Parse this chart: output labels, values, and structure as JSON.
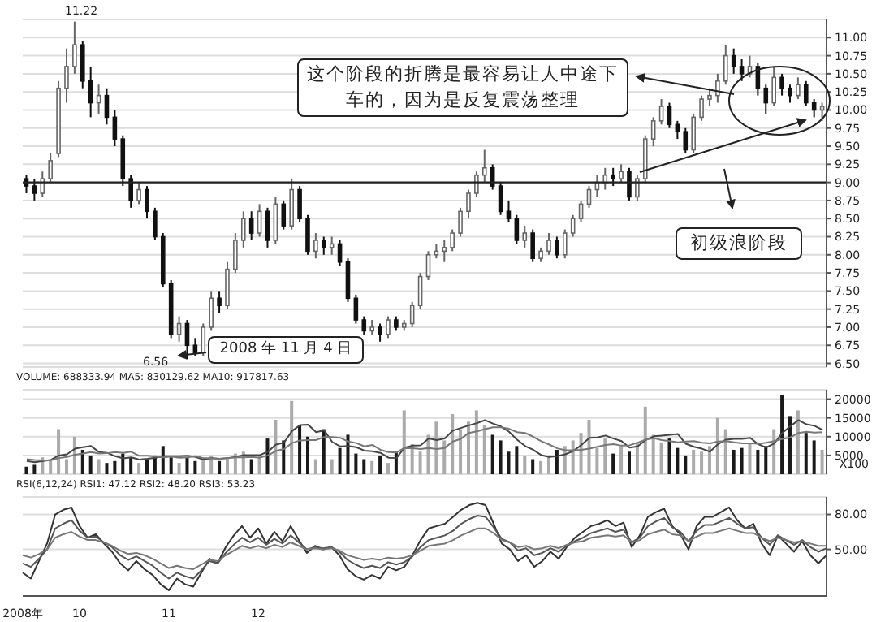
{
  "chart_data": [
    {
      "type": "candlestick",
      "categories": [
        null,
        null,
        null,
        null,
        null,
        null,
        null,
        null,
        null,
        null,
        null,
        null,
        null,
        null,
        null,
        null,
        null,
        null,
        null,
        null,
        null,
        null,
        null,
        null,
        null,
        null,
        null,
        null,
        null,
        null,
        null,
        null,
        null,
        null,
        null,
        null,
        null,
        null,
        null,
        null,
        null,
        null,
        null,
        null,
        null,
        null,
        null,
        null,
        null,
        null,
        null,
        null,
        null,
        null,
        null,
        null,
        null,
        null,
        null,
        null,
        null,
        null,
        null,
        null,
        null,
        null,
        null,
        null,
        null,
        null,
        null,
        null,
        null,
        null,
        null,
        null,
        null,
        null,
        null,
        null,
        null,
        null,
        null,
        null,
        null,
        null,
        null,
        null,
        null,
        null,
        null,
        null,
        null,
        null,
        null,
        null,
        null,
        null,
        null,
        null
      ],
      "ohlc": [
        [
          9.05,
          9.1,
          8.85,
          8.95
        ],
        [
          8.95,
          9.05,
          8.75,
          8.85
        ],
        [
          8.85,
          9.15,
          8.8,
          9.05
        ],
        [
          9.05,
          9.4,
          9.0,
          9.3
        ],
        [
          9.4,
          10.4,
          9.35,
          10.3
        ],
        [
          10.3,
          10.85,
          10.1,
          10.6
        ],
        [
          10.6,
          11.22,
          10.5,
          10.9
        ],
        [
          10.9,
          10.95,
          10.3,
          10.4
        ],
        [
          10.4,
          10.6,
          9.9,
          10.1
        ],
        [
          10.1,
          10.35,
          9.95,
          10.2
        ],
        [
          10.2,
          10.3,
          9.8,
          9.9
        ],
        [
          9.9,
          10.0,
          9.5,
          9.6
        ],
        [
          9.6,
          9.65,
          8.95,
          9.05
        ],
        [
          9.05,
          9.1,
          8.65,
          8.75
        ],
        [
          8.75,
          9.0,
          8.7,
          8.9
        ],
        [
          8.9,
          8.95,
          8.5,
          8.6
        ],
        [
          8.6,
          8.65,
          8.2,
          8.25
        ],
        [
          8.25,
          8.3,
          7.55,
          7.6
        ],
        [
          7.6,
          7.65,
          6.85,
          6.9
        ],
        [
          6.9,
          7.15,
          6.8,
          7.05
        ],
        [
          7.05,
          7.1,
          6.56,
          6.75
        ],
        [
          6.75,
          6.85,
          6.6,
          6.65
        ],
        [
          6.65,
          7.05,
          6.6,
          7.0
        ],
        [
          7.0,
          7.5,
          6.95,
          7.4
        ],
        [
          7.4,
          7.5,
          7.2,
          7.3
        ],
        [
          7.3,
          7.9,
          7.25,
          7.8
        ],
        [
          7.8,
          8.3,
          7.75,
          8.2
        ],
        [
          8.2,
          8.6,
          8.1,
          8.5
        ],
        [
          8.5,
          8.6,
          8.2,
          8.3
        ],
        [
          8.3,
          8.7,
          8.25,
          8.6
        ],
        [
          8.6,
          8.65,
          8.1,
          8.2
        ],
        [
          8.2,
          8.8,
          8.15,
          8.7
        ],
        [
          8.7,
          8.75,
          8.35,
          8.4
        ],
        [
          8.4,
          9.05,
          8.35,
          8.9
        ],
        [
          8.9,
          8.95,
          8.45,
          8.5
        ],
        [
          8.5,
          8.55,
          8.0,
          8.05
        ],
        [
          8.05,
          8.3,
          7.95,
          8.2
        ],
        [
          8.2,
          8.25,
          8.0,
          8.1
        ],
        [
          8.1,
          8.25,
          8.0,
          8.15
        ],
        [
          8.15,
          8.2,
          7.85,
          7.9
        ],
        [
          7.9,
          7.95,
          7.35,
          7.4
        ],
        [
          7.4,
          7.45,
          7.05,
          7.1
        ],
        [
          7.1,
          7.15,
          6.9,
          6.95
        ],
        [
          6.95,
          7.1,
          6.9,
          7.0
        ],
        [
          7.0,
          7.05,
          6.8,
          6.9
        ],
        [
          6.9,
          7.15,
          6.85,
          7.1
        ],
        [
          7.1,
          7.15,
          6.95,
          7.0
        ],
        [
          7.0,
          7.1,
          6.95,
          7.05
        ],
        [
          7.05,
          7.35,
          7.0,
          7.3
        ],
        [
          7.3,
          7.75,
          7.25,
          7.7
        ],
        [
          7.7,
          8.05,
          7.65,
          8.0
        ],
        [
          8.0,
          8.15,
          7.95,
          8.05
        ],
        [
          8.05,
          8.2,
          7.9,
          8.1
        ],
        [
          8.1,
          8.35,
          8.05,
          8.3
        ],
        [
          8.3,
          8.65,
          8.25,
          8.6
        ],
        [
          8.6,
          8.9,
          8.5,
          8.85
        ],
        [
          8.85,
          9.15,
          8.8,
          9.1
        ],
        [
          9.1,
          9.45,
          9.0,
          9.2
        ],
        [
          9.2,
          9.25,
          8.9,
          8.95
        ],
        [
          8.95,
          9.0,
          8.55,
          8.6
        ],
        [
          8.6,
          8.75,
          8.45,
          8.5
        ],
        [
          8.5,
          8.55,
          8.15,
          8.2
        ],
        [
          8.2,
          8.4,
          8.1,
          8.3
        ],
        [
          8.3,
          8.35,
          7.9,
          7.95
        ],
        [
          7.95,
          8.1,
          7.9,
          8.05
        ],
        [
          8.05,
          8.3,
          8.0,
          8.2
        ],
        [
          8.2,
          8.25,
          7.95,
          8.0
        ],
        [
          8.0,
          8.35,
          7.95,
          8.3
        ],
        [
          8.3,
          8.55,
          8.25,
          8.5
        ],
        [
          8.5,
          8.75,
          8.45,
          8.7
        ],
        [
          8.7,
          8.95,
          8.65,
          8.9
        ],
        [
          8.9,
          9.1,
          8.8,
          9.0
        ],
        [
          9.0,
          9.2,
          8.9,
          9.1
        ],
        [
          9.1,
          9.2,
          8.95,
          9.05
        ],
        [
          9.05,
          9.25,
          9.0,
          9.15
        ],
        [
          9.15,
          9.2,
          8.75,
          8.8
        ],
        [
          8.8,
          9.1,
          8.75,
          9.05
        ],
        [
          9.05,
          9.65,
          9.0,
          9.6
        ],
        [
          9.6,
          9.9,
          9.5,
          9.85
        ],
        [
          9.85,
          10.15,
          9.8,
          10.05
        ],
        [
          10.05,
          10.1,
          9.75,
          9.8
        ],
        [
          9.8,
          9.85,
          9.6,
          9.7
        ],
        [
          9.7,
          9.75,
          9.4,
          9.45
        ],
        [
          9.45,
          9.95,
          9.4,
          9.9
        ],
        [
          9.9,
          10.2,
          9.85,
          10.15
        ],
        [
          10.15,
          10.3,
          10.05,
          10.2
        ],
        [
          10.2,
          10.5,
          10.1,
          10.4
        ],
        [
          10.4,
          10.9,
          10.35,
          10.75
        ],
        [
          10.75,
          10.85,
          10.5,
          10.6
        ],
        [
          10.6,
          10.7,
          10.4,
          10.5
        ],
        [
          10.5,
          10.75,
          10.45,
          10.6
        ],
        [
          10.6,
          10.65,
          10.2,
          10.3
        ],
        [
          10.3,
          10.35,
          9.95,
          10.1
        ],
        [
          10.1,
          10.6,
          10.05,
          10.45
        ],
        [
          10.45,
          10.5,
          10.2,
          10.3
        ],
        [
          10.3,
          10.35,
          10.1,
          10.2
        ],
        [
          10.2,
          10.45,
          10.15,
          10.35
        ],
        [
          10.35,
          10.4,
          10.05,
          10.1
        ],
        [
          10.1,
          10.15,
          9.9,
          10.0
        ],
        [
          10.0,
          10.1,
          9.85,
          10.05
        ]
      ],
      "ylim": [
        6.45,
        11.25
      ],
      "yticks": [
        {
          "value": 6.5,
          "label": "6.50"
        },
        {
          "value": 6.75,
          "label": "6.75"
        },
        {
          "value": 7,
          "label": "7.00"
        },
        {
          "value": 7.25,
          "label": "7.25"
        },
        {
          "value": 7.5,
          "label": "7.50"
        },
        {
          "value": 7.75,
          "label": "7.75"
        },
        {
          "value": 8,
          "label": "8.00"
        },
        {
          "value": 8.25,
          "label": "8.25"
        },
        {
          "value": 8.5,
          "label": "8.50"
        },
        {
          "value": 8.75,
          "label": "8.75"
        },
        {
          "value": 9,
          "label": "9.00"
        },
        {
          "value": 9.25,
          "label": "9.25"
        },
        {
          "value": 9.5,
          "label": "9.50"
        },
        {
          "value": 9.75,
          "label": "9.75"
        },
        {
          "value": 10,
          "label": "10.00"
        },
        {
          "value": 10.25,
          "label": "10.25"
        },
        {
          "value": 10.5,
          "label": "10.50"
        },
        {
          "value": 10.75,
          "label": "10.75"
        },
        {
          "value": 11,
          "label": "11.00"
        }
      ],
      "grid": "y",
      "tick_labels": "y",
      "ref_lines": [
        {
          "axis": "y",
          "value": 9.0,
          "color": "#222222"
        }
      ],
      "annotations": [
        "11.22",
        "6.56",
        "2008 年 11 月 4 日",
        "这个阶段的折腾是最容易让人中途下车的，因为是反复震荡整理",
        "初级浪阶段"
      ]
    },
    {
      "type": "bar",
      "title": "VOLUME: 688333.94 MA5: 830129.62 MA10: 917817.63",
      "ylabel": "X100",
      "categories": [
        null,
        null,
        null,
        null,
        null,
        null,
        null,
        null,
        null,
        null,
        null,
        null,
        null,
        null,
        null,
        null,
        null,
        null,
        null,
        null,
        null,
        null,
        null,
        null,
        null,
        null,
        null,
        null,
        null,
        null,
        null,
        null,
        null,
        null,
        null,
        null,
        null,
        null,
        null,
        null,
        null,
        null,
        null,
        null,
        null,
        null,
        null,
        null,
        null,
        null,
        null,
        null,
        null,
        null,
        null,
        null,
        null,
        null,
        null,
        null,
        null,
        null,
        null,
        null,
        null,
        null,
        null,
        null,
        null,
        null,
        null,
        null,
        null,
        null,
        null,
        null,
        null,
        null,
        null,
        null,
        null,
        null,
        null,
        null,
        null,
        null,
        null,
        null,
        null,
        null,
        null,
        null,
        null,
        null,
        null,
        null,
        null,
        null,
        null,
        null
      ],
      "ylim": [
        0,
        22500
      ],
      "yticks": [
        5000,
        10000,
        15000,
        20000
      ],
      "grid": "y",
      "tick_labels": "y",
      "series": [
        {
          "type": "bar",
          "values": [
            2000,
            2500,
            4500,
            3500,
            12000,
            4000,
            10000,
            6500,
            5000,
            4000,
            3000,
            3500,
            5500,
            4500,
            3000,
            4000,
            5000,
            7500,
            4500,
            3000,
            4500,
            3500,
            4000,
            5000,
            3500,
            4500,
            5500,
            6000,
            4000,
            5000,
            9500,
            14500,
            9000,
            19500,
            13000,
            10000,
            4000,
            12000,
            4000,
            7000,
            10500,
            5500,
            4000,
            3500,
            5000,
            3000,
            6000,
            17000,
            8000,
            6000,
            10500,
            14000,
            9000,
            16000,
            12000,
            14000,
            17000,
            13000,
            10500,
            9000,
            6000,
            7500,
            5000,
            4000,
            3500,
            5000,
            6500,
            7500,
            9000,
            11000,
            14500,
            7000,
            9500,
            5500,
            7500,
            6000,
            8500,
            18000,
            10500,
            8500,
            9500,
            7000,
            5000,
            6500,
            6000,
            7500,
            15000,
            12000,
            6500,
            7000,
            8000,
            6500,
            7500,
            12000,
            21000,
            15500,
            17000,
            11000,
            9000,
            6500
          ],
          "colors": [
            "#1a1a1a",
            "#1a1a1a",
            "#aaaaaa",
            "#aaaaaa",
            "#aaaaaa",
            "#aaaaaa",
            "#aaaaaa",
            "#1a1a1a",
            "#1a1a1a",
            "#aaaaaa",
            "#1a1a1a",
            "#1a1a1a",
            "#1a1a1a",
            "#1a1a1a",
            "#aaaaaa",
            "#1a1a1a",
            "#1a1a1a",
            "#1a1a1a",
            "#1a1a1a",
            "#aaaaaa",
            "#1a1a1a",
            "#1a1a1a",
            "#aaaaaa",
            "#aaaaaa",
            "#1a1a1a",
            "#aaaaaa",
            "#aaaaaa",
            "#aaaaaa",
            "#1a1a1a",
            "#aaaaaa",
            "#1a1a1a",
            "#aaaaaa",
            "#1a1a1a",
            "#aaaaaa",
            "#1a1a1a",
            "#1a1a1a",
            "#aaaaaa",
            "#1a1a1a",
            "#aaaaaa",
            "#1a1a1a",
            "#1a1a1a",
            "#1a1a1a",
            "#1a1a1a",
            "#aaaaaa",
            "#1a1a1a",
            "#aaaaaa",
            "#1a1a1a",
            "#aaaaaa",
            "#aaaaaa",
            "#aaaaaa",
            "#aaaaaa",
            "#aaaaaa",
            "#aaaaaa",
            "#aaaaaa",
            "#aaaaaa",
            "#aaaaaa",
            "#aaaaaa",
            "#aaaaaa",
            "#1a1a1a",
            "#1a1a1a",
            "#1a1a1a",
            "#1a1a1a",
            "#aaaaaa",
            "#1a1a1a",
            "#aaaaaa",
            "#aaaaaa",
            "#1a1a1a",
            "#aaaaaa",
            "#aaaaaa",
            "#aaaaaa",
            "#aaaaaa",
            "#aaaaaa",
            "#aaaaaa",
            "#1a1a1a",
            "#aaaaaa",
            "#1a1a1a",
            "#aaaaaa",
            "#aaaaaa",
            "#aaaaaa",
            "#aaaaaa",
            "#1a1a1a",
            "#1a1a1a",
            "#1a1a1a",
            "#aaaaaa",
            "#aaaaaa",
            "#aaaaaa",
            "#aaaaaa",
            "#aaaaaa",
            "#1a1a1a",
            "#1a1a1a",
            "#aaaaaa",
            "#1a1a1a",
            "#1a1a1a",
            "#aaaaaa",
            "#1a1a1a",
            "#1a1a1a",
            "#aaaaaa",
            "#1a1a1a",
            "#1a1a1a",
            "#aaaaaa"
          ]
        },
        {
          "type": "line",
          "color": "#444444",
          "values": [
            3500,
            3200,
            3500,
            3800,
            5000,
            5300,
            6800,
            7200,
            7500,
            5900,
            5700,
            4800,
            4200,
            4500,
            3900,
            4100,
            4400,
            4800,
            4800,
            4800,
            4900,
            4600,
            3900,
            4300,
            4100,
            4300,
            4600,
            5100,
            5100,
            5100,
            6000,
            7900,
            8400,
            11500,
            13100,
            13200,
            11200,
            11700,
            8600,
            7400,
            7500,
            7200,
            6300,
            6100,
            5700,
            4400,
            4300,
            7100,
            7600,
            7700,
            9500,
            9100,
            9500,
            11600,
            12300,
            13000,
            13600,
            14400,
            13500,
            12700,
            11300,
            9200,
            7500,
            6500,
            5100,
            4600,
            4800,
            5300,
            6200,
            7800,
            9700,
            9800,
            10300,
            9500,
            8800,
            7100,
            7400,
            9100,
            10100,
            10300,
            10500,
            10700,
            8100,
            7300,
            6800,
            6000,
            8000,
            9200,
            9400,
            9400,
            9700,
            8000,
            7100,
            8200,
            11000,
            12800,
            14400,
            13300,
            12900,
            11800
          ]
        },
        {
          "type": "line",
          "color": "#777777",
          "values": [
            4000,
            3800,
            3700,
            3700,
            4300,
            4600,
            5200,
            5500,
            5900,
            5500,
            5600,
            5900,
            5700,
            6000,
            4900,
            4900,
            4700,
            4500,
            4700,
            4400,
            4500,
            4800,
            4300,
            4200,
            4100,
            4300,
            4500,
            4500,
            4600,
            4400,
            5000,
            6200,
            6700,
            8300,
            9000,
            9100,
            9100,
            9900,
            9900,
            9700,
            8700,
            8300,
            7400,
            7800,
            6500,
            5900,
            5800,
            7000,
            6900,
            6700,
            7000,
            6700,
            7000,
            8700,
            9400,
            11000,
            11400,
            12000,
            12500,
            12500,
            12100,
            11200,
            11000,
            10000,
            8800,
            7900,
            6900,
            6400,
            6400,
            6500,
            6800,
            7300,
            7800,
            8000,
            7600,
            7700,
            8400,
            9200,
            9600,
            9100,
            8800,
            8500,
            8700,
            8800,
            8400,
            8200,
            8700,
            8800,
            8500,
            8200,
            8200,
            8100,
            8400,
            8800,
            9400,
            9800,
            11000,
            11300,
            11100,
            11200
          ]
        }
      ]
    },
    {
      "type": "line",
      "title": "RSI(6,12,24) RSI1: 47.12 RSI2: 48.20 RSI3: 53.23",
      "categories": [
        "2008年",
        null,
        null,
        null,
        null,
        null,
        null,
        "10",
        null,
        null,
        null,
        null,
        null,
        null,
        null,
        null,
        null,
        null,
        "11",
        null,
        null,
        null,
        null,
        null,
        null,
        null,
        null,
        null,
        null,
        "12",
        null,
        null,
        null,
        null,
        null,
        null,
        null,
        null,
        null,
        null,
        null,
        null,
        null,
        null,
        null,
        null,
        null,
        null,
        null,
        null,
        null,
        null,
        null,
        null,
        null,
        null,
        null,
        null,
        null,
        null,
        null,
        null,
        null,
        null,
        null,
        null,
        null,
        null,
        null,
        null,
        null,
        null,
        null,
        null,
        null,
        null,
        null,
        null,
        null,
        null,
        null,
        null,
        null,
        null,
        null,
        null,
        null,
        null,
        null,
        null,
        null,
        null,
        null,
        null,
        null,
        null,
        null,
        null,
        null,
        null
      ],
      "ylim": [
        10,
        95
      ],
      "yticks": [
        {
          "value": 50,
          "label": "50.00"
        },
        {
          "value": 80,
          "label": "80.00"
        }
      ],
      "grid": "y",
      "series": [
        {
          "color": "#333333",
          "values": [
            30,
            25,
            40,
            55,
            80,
            84,
            86,
            70,
            60,
            63,
            55,
            48,
            38,
            32,
            40,
            33,
            28,
            20,
            15,
            25,
            20,
            18,
            30,
            42,
            38,
            52,
            62,
            70,
            60,
            68,
            55,
            65,
            57,
            70,
            58,
            47,
            53,
            50,
            52,
            45,
            33,
            27,
            24,
            28,
            25,
            35,
            32,
            35,
            45,
            58,
            68,
            70,
            72,
            78,
            84,
            88,
            90,
            88,
            72,
            55,
            50,
            40,
            45,
            35,
            40,
            48,
            42,
            52,
            60,
            65,
            70,
            72,
            75,
            70,
            73,
            52,
            62,
            78,
            82,
            85,
            70,
            63,
            50,
            70,
            78,
            78,
            82,
            86,
            75,
            68,
            72,
            55,
            45,
            62,
            55,
            48,
            57,
            45,
            38,
            45
          ]
        },
        {
          "color": "#555555",
          "values": [
            38,
            35,
            42,
            50,
            68,
            72,
            75,
            66,
            60,
            61,
            56,
            52,
            45,
            41,
            44,
            40,
            36,
            30,
            25,
            30,
            27,
            25,
            32,
            40,
            38,
            47,
            54,
            60,
            56,
            60,
            54,
            59,
            55,
            62,
            56,
            50,
            52,
            51,
            52,
            48,
            41,
            37,
            34,
            36,
            34,
            39,
            37,
            39,
            44,
            52,
            58,
            60,
            62,
            66,
            72,
            76,
            79,
            78,
            69,
            59,
            56,
            49,
            51,
            45,
            47,
            51,
            48,
            53,
            57,
            60,
            64,
            66,
            68,
            65,
            67,
            56,
            60,
            70,
            74,
            77,
            69,
            65,
            57,
            66,
            71,
            71,
            74,
            77,
            72,
            68,
            69,
            60,
            54,
            62,
            58,
            54,
            58,
            52,
            48,
            51
          ]
        },
        {
          "color": "#777777",
          "values": [
            45,
            43,
            46,
            50,
            60,
            63,
            65,
            61,
            58,
            58,
            56,
            53,
            49,
            46,
            47,
            45,
            42,
            38,
            34,
            36,
            34,
            33,
            37,
            41,
            40,
            45,
            49,
            53,
            51,
            53,
            51,
            54,
            52,
            56,
            53,
            50,
            51,
            50,
            51,
            49,
            45,
            43,
            41,
            42,
            41,
            43,
            42,
            43,
            45,
            49,
            53,
            54,
            55,
            58,
            62,
            65,
            68,
            68,
            64,
            58,
            56,
            52,
            53,
            50,
            51,
            53,
            51,
            54,
            56,
            57,
            60,
            61,
            62,
            61,
            62,
            56,
            58,
            63,
            65,
            67,
            63,
            62,
            57,
            61,
            64,
            64,
            66,
            68,
            66,
            64,
            64,
            60,
            57,
            60,
            58,
            56,
            57,
            55,
            53,
            53
          ]
        }
      ]
    }
  ]
}
